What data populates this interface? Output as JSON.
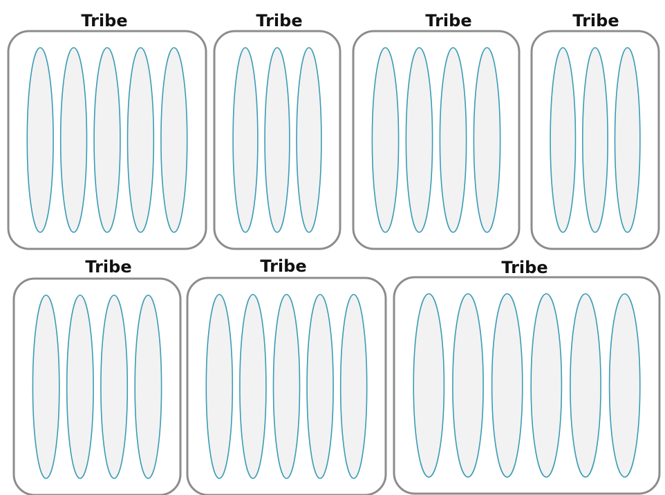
{
  "colors": {
    "tribe_border": "#8c8c8c",
    "squad_stroke": "#3a9bb5",
    "squad_fill": "#f2f2f2",
    "label": "#111111"
  },
  "tribes": [
    {
      "label": "Tribe",
      "squads": 5
    },
    {
      "label": "Tribe",
      "squads": 3
    },
    {
      "label": "Tribe",
      "squads": 4
    },
    {
      "label": "Tribe",
      "squads": 3
    },
    {
      "label": "Tribe",
      "squads": 4
    },
    {
      "label": "Tribe",
      "squads": 5
    },
    {
      "label": "Tribe",
      "squads": 6
    }
  ]
}
